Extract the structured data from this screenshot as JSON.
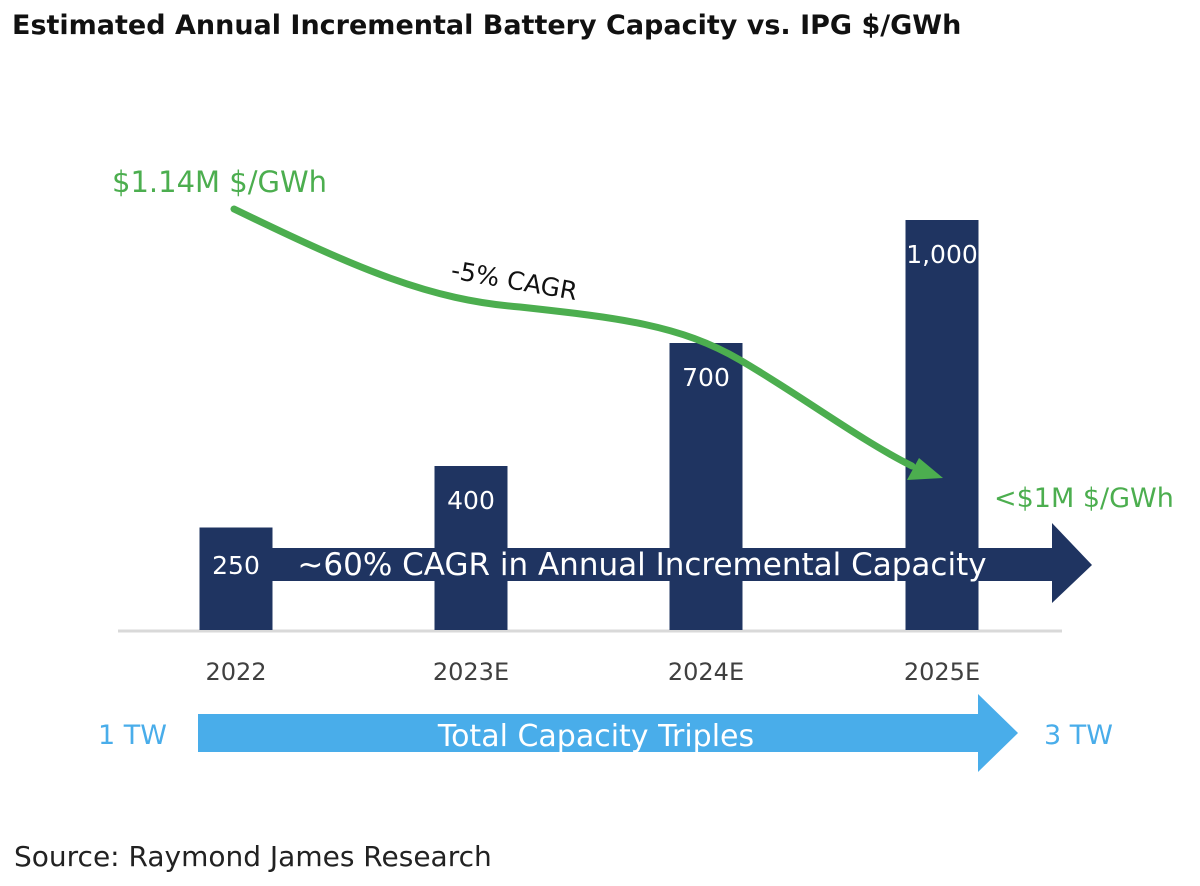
{
  "title": "Estimated Annual Incremental Battery Capacity vs. IPG $/GWh",
  "source": "Source: Raymond James Research",
  "colors": {
    "bar": "#1f3461",
    "capacity_arrow": "#1f3461",
    "price_line": "#4cae4f",
    "total_arrow": "#49adea",
    "tw_label": "#49adea",
    "axis": "#d9d9d9",
    "tick_label": "#404040"
  },
  "chart_data": {
    "type": "bar",
    "categories": [
      "2022",
      "2023E",
      "2024E",
      "2025E"
    ],
    "values": [
      250,
      400,
      700,
      1000
    ],
    "value_labels": [
      "250",
      "400",
      "700",
      "1,000"
    ],
    "ylim": [
      0,
      1000
    ],
    "grid": false,
    "price_line": {
      "start_label": "$1.14M $/GWh",
      "end_label": "<$1M $/GWh",
      "annotation": "-5% CAGR",
      "start_value": 1.14,
      "end_value": 1.0,
      "unit": "$M/GWh"
    },
    "capacity_arrow_label": "~60% CAGR in Annual Incremental Capacity",
    "total_capacity": {
      "label": "Total Capacity Triples",
      "start": "1 TW",
      "end": "3 TW"
    }
  }
}
